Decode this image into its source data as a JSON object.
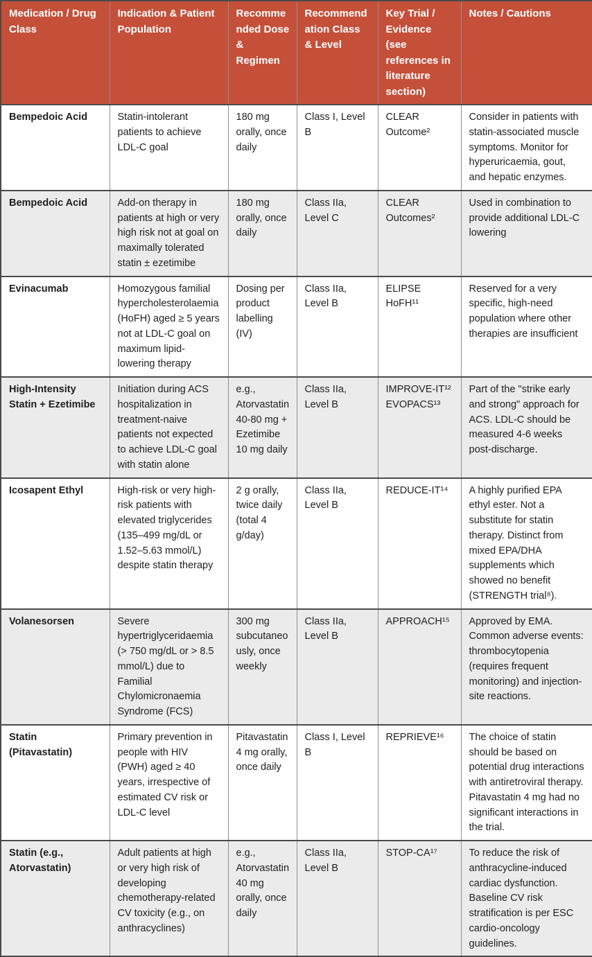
{
  "colors": {
    "header_bg": "#c5503a",
    "header_text": "#ffffff",
    "row_alt_bg": "#ebebeb",
    "border_dark": "#4a4a4a",
    "border_light": "#8f8f8f",
    "text": "#1f1f1f"
  },
  "table": {
    "columns": [
      {
        "label": "Medication / Drug Class"
      },
      {
        "label": "Indication & Patient Population"
      },
      {
        "label": "Recommended Dose & Regimen"
      },
      {
        "label": "Recommendation Class & Level"
      },
      {
        "label": "Key Trial / Evidence (see references in literature section)"
      },
      {
        "label": "Notes / Cautions"
      }
    ],
    "rows": [
      {
        "medication": "Bempedoic Acid",
        "indication": "Statin-intolerant patients to achieve LDL-C goal",
        "dose": "180 mg orally, once daily",
        "class_level": "Class I, Level B",
        "trial": "CLEAR Outcome²",
        "notes": "Consider in patients with statin-associated muscle symptoms. Monitor for hyperuricaemia, gout, and hepatic enzymes."
      },
      {
        "medication": "Bempedoic Acid",
        "indication": "Add-on therapy in patients at high or very high risk not at goal on maximally tolerated statin ± ezetimibe",
        "dose": "180 mg orally, once daily",
        "class_level": "Class IIa, Level C",
        "trial": "CLEAR Outcomes²",
        "notes": "Used in combination to provide additional LDL-C lowering"
      },
      {
        "medication": "Evinacumab",
        "indication": "Homozygous familial hypercholesterolaemia (HoFH) aged ≥ 5 years not at LDL-C goal on maximum lipid-lowering therapy",
        "dose": "Dosing per product labelling (IV)",
        "class_level": "Class IIa, Level B",
        "trial": "ELIPSE HoFH¹¹",
        "notes": "Reserved for a very specific, high-need population where other therapies are insufficient"
      },
      {
        "medication": "High-Intensity Statin + Ezetimibe",
        "indication": "Initiation during ACS hospitalization in treatment-naive patients not expected to achieve LDL-C goal with statin alone",
        "dose": "e.g., Atorvastatin 40-80 mg + Ezetimibe 10 mg daily",
        "class_level": "Class IIa, Level B",
        "trial": "IMPROVE-IT¹²\nEVOPACS¹³",
        "notes": "Part of the \"strike early and strong\" approach for ACS. LDL-C should be measured 4-6 weeks post-discharge."
      },
      {
        "medication": "Icosapent Ethyl",
        "indication": "High-risk or very high-risk patients with elevated triglycerides (135–499 mg/dL or 1.52–5.63 mmol/L) despite statin therapy",
        "dose": "2 g orally, twice daily (total 4 g/day)",
        "class_level": "Class IIa, Level B",
        "trial": "REDUCE-IT¹⁴",
        "notes": "A highly purified EPA ethyl ester. Not a substitute for statin therapy. Distinct from mixed EPA/DHA supplements which showed no benefit (STRENGTH trial⁸)."
      },
      {
        "medication": "Volanesorsen",
        "indication": "Severe hypertriglyceridaemia (> 750 mg/dL or > 8.5 mmol/L) due to Familial Chylomicronaemia Syndrome (FCS)",
        "dose": "300 mg subcutaneously, once weekly",
        "class_level": "Class IIa, Level B",
        "trial": "APPROACH¹⁵",
        "notes": "Approved by EMA. Common adverse events: thrombocytopenia (requires frequent monitoring) and injection-site reactions."
      },
      {
        "medication": "Statin (Pitavastatin)",
        "indication": "Primary prevention in people with HIV (PWH) aged ≥ 40 years, irrespective of estimated CV risk or LDL-C level",
        "dose": "Pitavastatin 4 mg orally, once daily",
        "class_level": "Class I, Level B",
        "trial": "REPRIEVE¹⁶",
        "notes": "The choice of statin should be based on potential drug interactions with antiretroviral therapy. Pitavastatin 4 mg had no significant interactions in the trial."
      },
      {
        "medication": "Statin (e.g., Atorvastatin)",
        "indication": "Adult patients at high or very high risk of developing chemotherapy-related CV toxicity (e.g., on anthracyclines)",
        "dose": "e.g., Atorvastatin 40 mg orally, once daily",
        "class_level": "Class IIa, Level B",
        "trial": "STOP-CA¹⁷",
        "notes": "To reduce the risk of anthracycline-induced cardiac dysfunction. Baseline CV risk stratification is per ESC cardio-oncology guidelines."
      }
    ]
  }
}
